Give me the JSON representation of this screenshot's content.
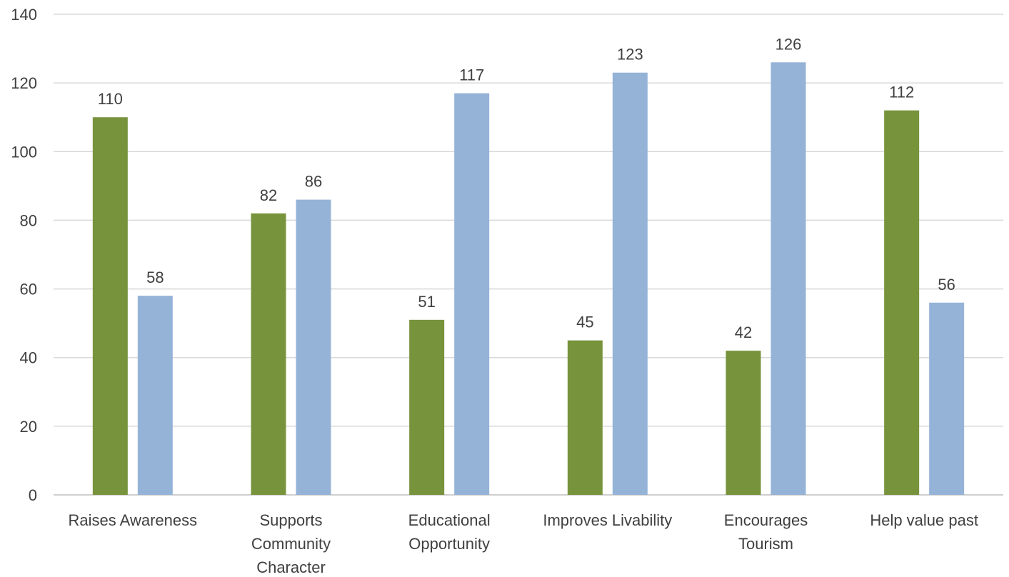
{
  "chart_data": {
    "type": "bar",
    "categories": [
      [
        "Raises Awareness"
      ],
      [
        "Supports",
        "Community",
        "Character"
      ],
      [
        "Educational",
        "Opportunity"
      ],
      [
        "Improves Livability"
      ],
      [
        "Encourages",
        "Tourism"
      ],
      [
        "Help value past"
      ]
    ],
    "series": [
      {
        "values": [
          110,
          82,
          51,
          45,
          42,
          112
        ],
        "color": "#77933c"
      },
      {
        "values": [
          58,
          86,
          117,
          123,
          126,
          56
        ],
        "color": "#95b3d7"
      }
    ],
    "ylim": [
      0,
      140
    ],
    "yticks": [
      0,
      20,
      40,
      60,
      80,
      100,
      120,
      140
    ],
    "grid": true,
    "data_labels": true,
    "title": "",
    "xlabel": "",
    "ylabel": ""
  }
}
